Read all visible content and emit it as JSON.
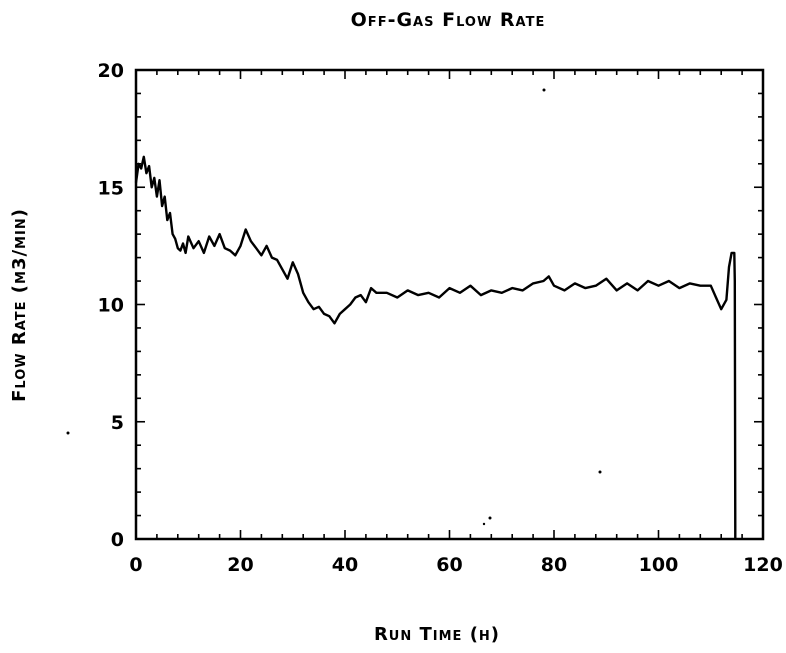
{
  "chart_data": {
    "type": "line",
    "title": "Off-Gas Flow Rate",
    "xlabel": "Run Time (h)",
    "ylabel": "Flow Rate (m3/min)",
    "xlim": [
      0,
      120
    ],
    "ylim": [
      0,
      20
    ],
    "xticks": [
      0,
      20,
      40,
      60,
      80,
      100,
      120
    ],
    "yticks": [
      0,
      5,
      10,
      15,
      20
    ],
    "grid": false,
    "series": [
      {
        "x": [
          0,
          0.5,
          1,
          1.5,
          2,
          2.5,
          3,
          3.5,
          4,
          4.5,
          5,
          5.5,
          6,
          6.5,
          7,
          7.5,
          8,
          8.5,
          9,
          9.5,
          10,
          11,
          12,
          13,
          14,
          15,
          16,
          17,
          18,
          19,
          20,
          21,
          22,
          23,
          24,
          25,
          26,
          27,
          28,
          29,
          30,
          31,
          32,
          33,
          34,
          35,
          36,
          37,
          38,
          39,
          40,
          41,
          42,
          43,
          44,
          45,
          46,
          48,
          50,
          52,
          54,
          56,
          58,
          60,
          62,
          64,
          66,
          68,
          70,
          72,
          74,
          76,
          78,
          79,
          80,
          82,
          84,
          86,
          88,
          90,
          92,
          94,
          96,
          98,
          100,
          102,
          104,
          106,
          108,
          110,
          111,
          112,
          113,
          113.5,
          114,
          114.5,
          114.6,
          114.7
        ],
        "y": [
          15.2,
          16.0,
          15.8,
          16.3,
          15.6,
          15.9,
          15.0,
          15.4,
          14.6,
          15.3,
          14.2,
          14.6,
          13.6,
          13.9,
          13.0,
          12.8,
          12.4,
          12.3,
          12.6,
          12.2,
          12.9,
          12.4,
          12.7,
          12.2,
          12.9,
          12.5,
          13.0,
          12.4,
          12.3,
          12.1,
          12.5,
          13.2,
          12.7,
          12.4,
          12.1,
          12.5,
          12.0,
          11.9,
          11.5,
          11.1,
          11.8,
          11.3,
          10.5,
          10.1,
          9.8,
          9.9,
          9.6,
          9.5,
          9.2,
          9.6,
          9.8,
          10.0,
          10.3,
          10.4,
          10.1,
          10.7,
          10.5,
          10.5,
          10.3,
          10.6,
          10.4,
          10.5,
          10.3,
          10.7,
          10.5,
          10.8,
          10.4,
          10.6,
          10.5,
          10.7,
          10.6,
          10.9,
          11.0,
          11.2,
          10.8,
          10.6,
          10.9,
          10.7,
          10.8,
          11.1,
          10.6,
          10.9,
          10.6,
          11.0,
          10.8,
          11.0,
          10.7,
          10.9,
          10.8,
          10.8,
          10.3,
          9.8,
          10.2,
          11.6,
          12.2,
          12.2,
          11.0,
          0
        ]
      }
    ]
  }
}
